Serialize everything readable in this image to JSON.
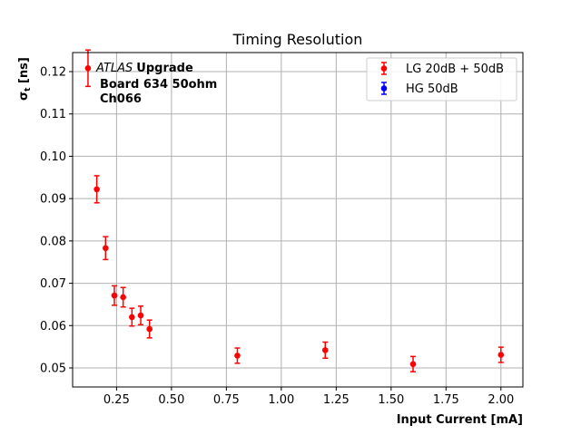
{
  "chart_data": {
    "type": "scatter",
    "title": "Timing Resolution",
    "xlabel": "Input Current [mA]",
    "ylabel_main": "σ",
    "ylabel_sub": "t",
    "ylabel_unit": " [ns]",
    "xlim": [
      0.05,
      2.1
    ],
    "ylim": [
      0.0455,
      0.1245
    ],
    "x_ticks": [
      0.25,
      0.5,
      0.75,
      1.0,
      1.25,
      1.5,
      1.75,
      2.0
    ],
    "x_tick_labels": [
      "0.25",
      "0.50",
      "0.75",
      "1.00",
      "1.25",
      "1.50",
      "1.75",
      "2.00"
    ],
    "y_ticks": [
      0.05,
      0.06,
      0.07,
      0.08,
      0.09,
      0.1,
      0.11,
      0.12
    ],
    "y_tick_labels": [
      "0.05",
      "0.06",
      "0.07",
      "0.08",
      "0.09",
      "0.10",
      "0.11",
      "0.12"
    ],
    "grid": true,
    "legend_position": "top-right",
    "annotation": {
      "atlas": "ATLAS",
      "upgrade": "Upgrade",
      "line2": "Board 634 50ohm",
      "line3": "Ch066"
    },
    "series": [
      {
        "name": "LG 20dB + 50dB",
        "color": "#ff0000",
        "points": [
          {
            "x": 0.12,
            "y": 0.1208,
            "err": 0.0043
          },
          {
            "x": 0.16,
            "y": 0.0922,
            "err": 0.0032
          },
          {
            "x": 0.2,
            "y": 0.0783,
            "err": 0.0027
          },
          {
            "x": 0.24,
            "y": 0.0671,
            "err": 0.0023
          },
          {
            "x": 0.28,
            "y": 0.0667,
            "err": 0.0023
          },
          {
            "x": 0.32,
            "y": 0.062,
            "err": 0.0021
          },
          {
            "x": 0.36,
            "y": 0.0624,
            "err": 0.0022
          },
          {
            "x": 0.4,
            "y": 0.0592,
            "err": 0.0021
          },
          {
            "x": 0.8,
            "y": 0.0529,
            "err": 0.0018
          },
          {
            "x": 1.2,
            "y": 0.0542,
            "err": 0.0019
          },
          {
            "x": 1.6,
            "y": 0.0509,
            "err": 0.0018
          },
          {
            "x": 2.0,
            "y": 0.0531,
            "err": 0.0018
          }
        ]
      },
      {
        "name": "HG 50dB",
        "color": "#0000ff",
        "points": []
      }
    ]
  }
}
